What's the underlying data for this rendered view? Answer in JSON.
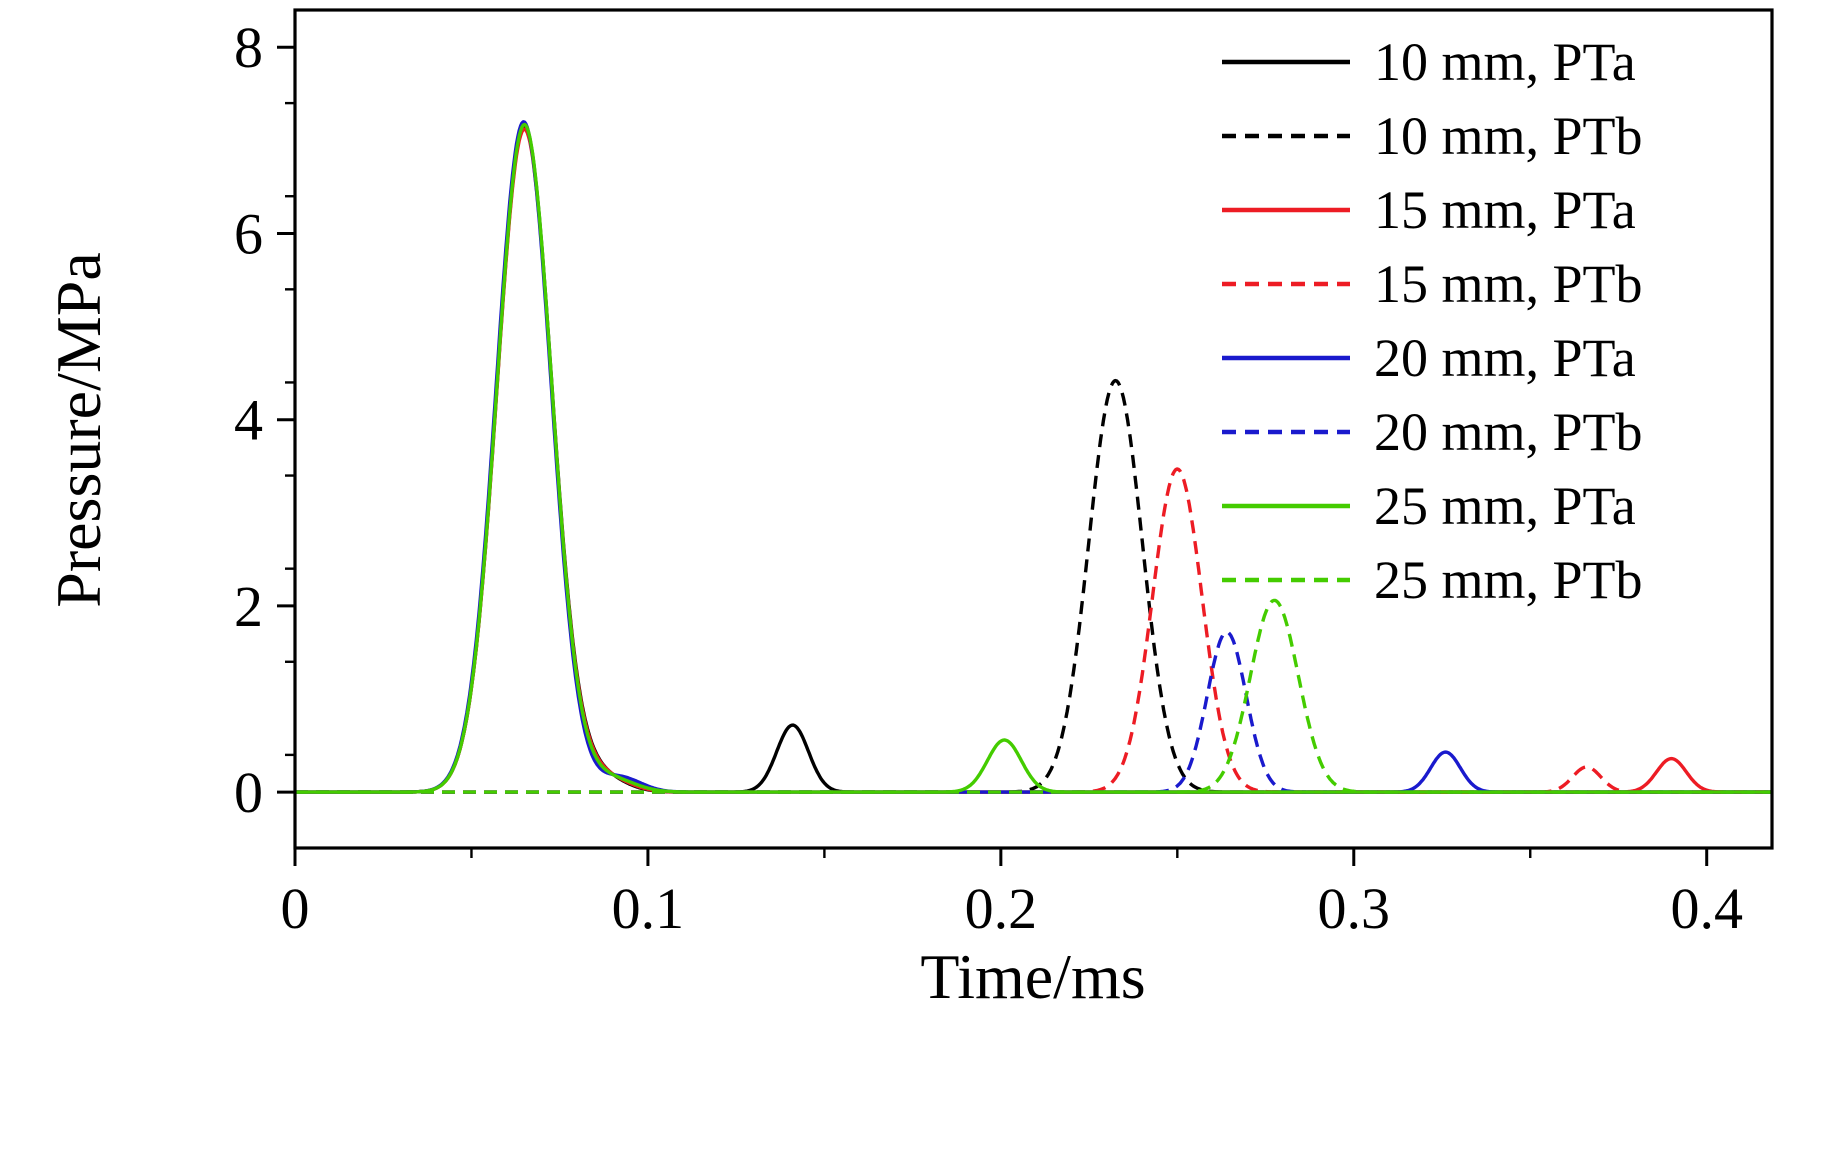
{
  "chart_data": {
    "type": "line",
    "title": "",
    "xlabel": "Time/ms",
    "ylabel": "Pressure/MPa",
    "xlim": [
      0,
      0.4185
    ],
    "ylim": [
      -0.6,
      8.4
    ],
    "xticks": [
      0,
      0.1,
      0.2,
      0.3,
      0.4
    ],
    "xtick_labels": [
      "0",
      "0.1",
      "0.2",
      "0.3",
      "0.4"
    ],
    "yticks": [
      0,
      2,
      4,
      6,
      8
    ],
    "ytick_labels": [
      "0",
      "2",
      "4",
      "6",
      "8"
    ],
    "xminor_step": 0.05,
    "yminor_step": 1,
    "grid": false,
    "legend_position": "top-right",
    "curve_model": "sum-of-gaussian-peaks",
    "series": [
      {
        "name": "10 mm, PTa",
        "color": "#000000",
        "style": "solid",
        "peaks": [
          {
            "center": 0.065,
            "height": 7.15,
            "sigma": 0.0078
          },
          {
            "center": 0.086,
            "height": 0.18,
            "sigma": 0.007
          },
          {
            "center": 0.141,
            "height": 0.72,
            "sigma": 0.0045
          }
        ]
      },
      {
        "name": "10 mm, PTb",
        "color": "#000000",
        "style": "dashed",
        "peaks": [
          {
            "center": 0.2325,
            "height": 4.42,
            "sigma": 0.0076
          }
        ]
      },
      {
        "name": "15 mm, PTa",
        "color": "#ed1c24",
        "style": "solid",
        "peaks": [
          {
            "center": 0.065,
            "height": 7.12,
            "sigma": 0.0078
          },
          {
            "center": 0.087,
            "height": 0.17,
            "sigma": 0.007
          },
          {
            "center": 0.39,
            "height": 0.36,
            "sigma": 0.0042
          }
        ]
      },
      {
        "name": "15 mm, PTb",
        "color": "#ed1c24",
        "style": "dashed",
        "peaks": [
          {
            "center": 0.25,
            "height": 3.47,
            "sigma": 0.007
          },
          {
            "center": 0.366,
            "height": 0.27,
            "sigma": 0.004
          }
        ]
      },
      {
        "name": "20 mm, PTa",
        "color": "#1a1acd",
        "style": "solid",
        "peaks": [
          {
            "center": 0.0648,
            "height": 7.2,
            "sigma": 0.0078
          },
          {
            "center": 0.092,
            "height": 0.16,
            "sigma": 0.006
          },
          {
            "center": 0.326,
            "height": 0.43,
            "sigma": 0.0042
          }
        ]
      },
      {
        "name": "20 mm, PTb",
        "color": "#1a1acd",
        "style": "dashed",
        "peaks": [
          {
            "center": 0.264,
            "height": 1.72,
            "sigma": 0.0055
          }
        ]
      },
      {
        "name": "25 mm, PTa",
        "color": "#44cc00",
        "style": "solid",
        "peaks": [
          {
            "center": 0.065,
            "height": 7.17,
            "sigma": 0.0078
          },
          {
            "center": 0.089,
            "height": 0.15,
            "sigma": 0.007
          },
          {
            "center": 0.201,
            "height": 0.56,
            "sigma": 0.0048
          }
        ]
      },
      {
        "name": "25 mm, PTb",
        "color": "#44cc00",
        "style": "dashed",
        "peaks": [
          {
            "center": 0.2775,
            "height": 2.06,
            "sigma": 0.0068
          }
        ]
      }
    ]
  }
}
